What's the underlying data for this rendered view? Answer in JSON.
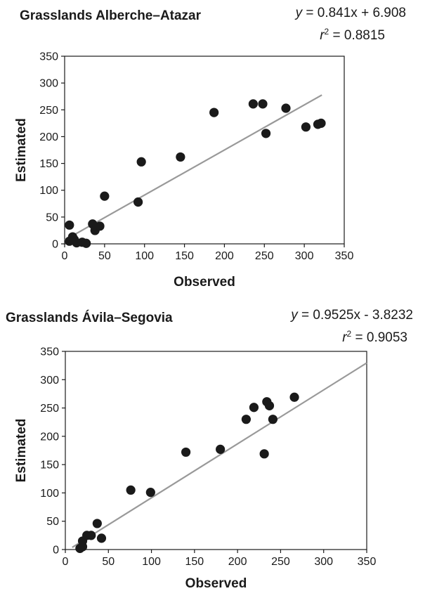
{
  "chart_data": [
    {
      "type": "scatter",
      "title": "Grasslands Alberche–Atazar",
      "equation": {
        "y": "y",
        "rhs": "= 0.841x + 6.908"
      },
      "r2": {
        "r": "r",
        "exp": "2",
        "rhs": "= 0.8815"
      },
      "xlabel": "Observed",
      "ylabel": "Estimated",
      "xlim": [
        0,
        350
      ],
      "ylim": [
        0,
        350
      ],
      "xticks": [
        0,
        50,
        100,
        150,
        200,
        250,
        300,
        350
      ],
      "yticks": [
        0,
        50,
        100,
        150,
        200,
        250,
        300,
        350
      ],
      "xtick_labels": [
        "0",
        "50",
        "100",
        "150",
        "200",
        "250",
        "300",
        "350"
      ],
      "ytick_labels": [
        "0",
        "50",
        "100",
        "150",
        "200",
        "250",
        "300",
        "350"
      ],
      "grid": false,
      "trendline": {
        "slope": 0.841,
        "intercept": 6.908,
        "x_range": [
          0,
          322
        ]
      },
      "colors": {
        "points": "#1a1a1a",
        "trendline": "#999999",
        "frame": "#1a1a1a"
      },
      "points": [
        {
          "x": 6,
          "y": 35
        },
        {
          "x": 6,
          "y": 5
        },
        {
          "x": 10,
          "y": 13
        },
        {
          "x": 12,
          "y": 8
        },
        {
          "x": 15,
          "y": 2
        },
        {
          "x": 22,
          "y": 3
        },
        {
          "x": 27,
          "y": 1
        },
        {
          "x": 35,
          "y": 37
        },
        {
          "x": 38,
          "y": 25
        },
        {
          "x": 44,
          "y": 33
        },
        {
          "x": 50,
          "y": 89
        },
        {
          "x": 92,
          "y": 78
        },
        {
          "x": 96,
          "y": 153
        },
        {
          "x": 145,
          "y": 162
        },
        {
          "x": 187,
          "y": 245
        },
        {
          "x": 236,
          "y": 261
        },
        {
          "x": 248,
          "y": 261
        },
        {
          "x": 252,
          "y": 206
        },
        {
          "x": 277,
          "y": 253
        },
        {
          "x": 302,
          "y": 218
        },
        {
          "x": 317,
          "y": 223
        },
        {
          "x": 321,
          "y": 225
        }
      ]
    },
    {
      "type": "scatter",
      "title": "Grasslands Ávila–Segovia",
      "equation": {
        "y": "y",
        "rhs": "= 0.9525x - 3.8232"
      },
      "r2": {
        "r": "r",
        "exp": "2",
        "rhs": "= 0.9053"
      },
      "xlabel": "Observed",
      "ylabel": "Estimated",
      "xlim": [
        0,
        350
      ],
      "ylim": [
        0,
        350
      ],
      "xticks": [
        0,
        50,
        100,
        150,
        200,
        250,
        300,
        350
      ],
      "yticks": [
        0,
        50,
        100,
        150,
        200,
        250,
        300,
        350
      ],
      "xtick_labels": [
        "0",
        "50",
        "100",
        "150",
        "200",
        "250",
        "300",
        "350"
      ],
      "ytick_labels": [
        "0",
        "50",
        "100",
        "150",
        "200",
        "250",
        "300",
        "350"
      ],
      "grid": false,
      "trendline": {
        "slope": 0.9525,
        "intercept": -3.8232,
        "x_range": [
          8,
          350
        ]
      },
      "colors": {
        "points": "#1a1a1a",
        "trendline": "#999999",
        "frame": "#1a1a1a"
      },
      "points": [
        {
          "x": 17,
          "y": 2
        },
        {
          "x": 20,
          "y": 5
        },
        {
          "x": 20,
          "y": 15
        },
        {
          "x": 25,
          "y": 25
        },
        {
          "x": 30,
          "y": 25
        },
        {
          "x": 37,
          "y": 46
        },
        {
          "x": 42,
          "y": 20
        },
        {
          "x": 76,
          "y": 105
        },
        {
          "x": 99,
          "y": 101
        },
        {
          "x": 140,
          "y": 172
        },
        {
          "x": 180,
          "y": 177
        },
        {
          "x": 210,
          "y": 230
        },
        {
          "x": 219,
          "y": 251
        },
        {
          "x": 231,
          "y": 169
        },
        {
          "x": 234,
          "y": 261
        },
        {
          "x": 237,
          "y": 254
        },
        {
          "x": 241,
          "y": 230
        },
        {
          "x": 266,
          "y": 269
        }
      ]
    }
  ]
}
